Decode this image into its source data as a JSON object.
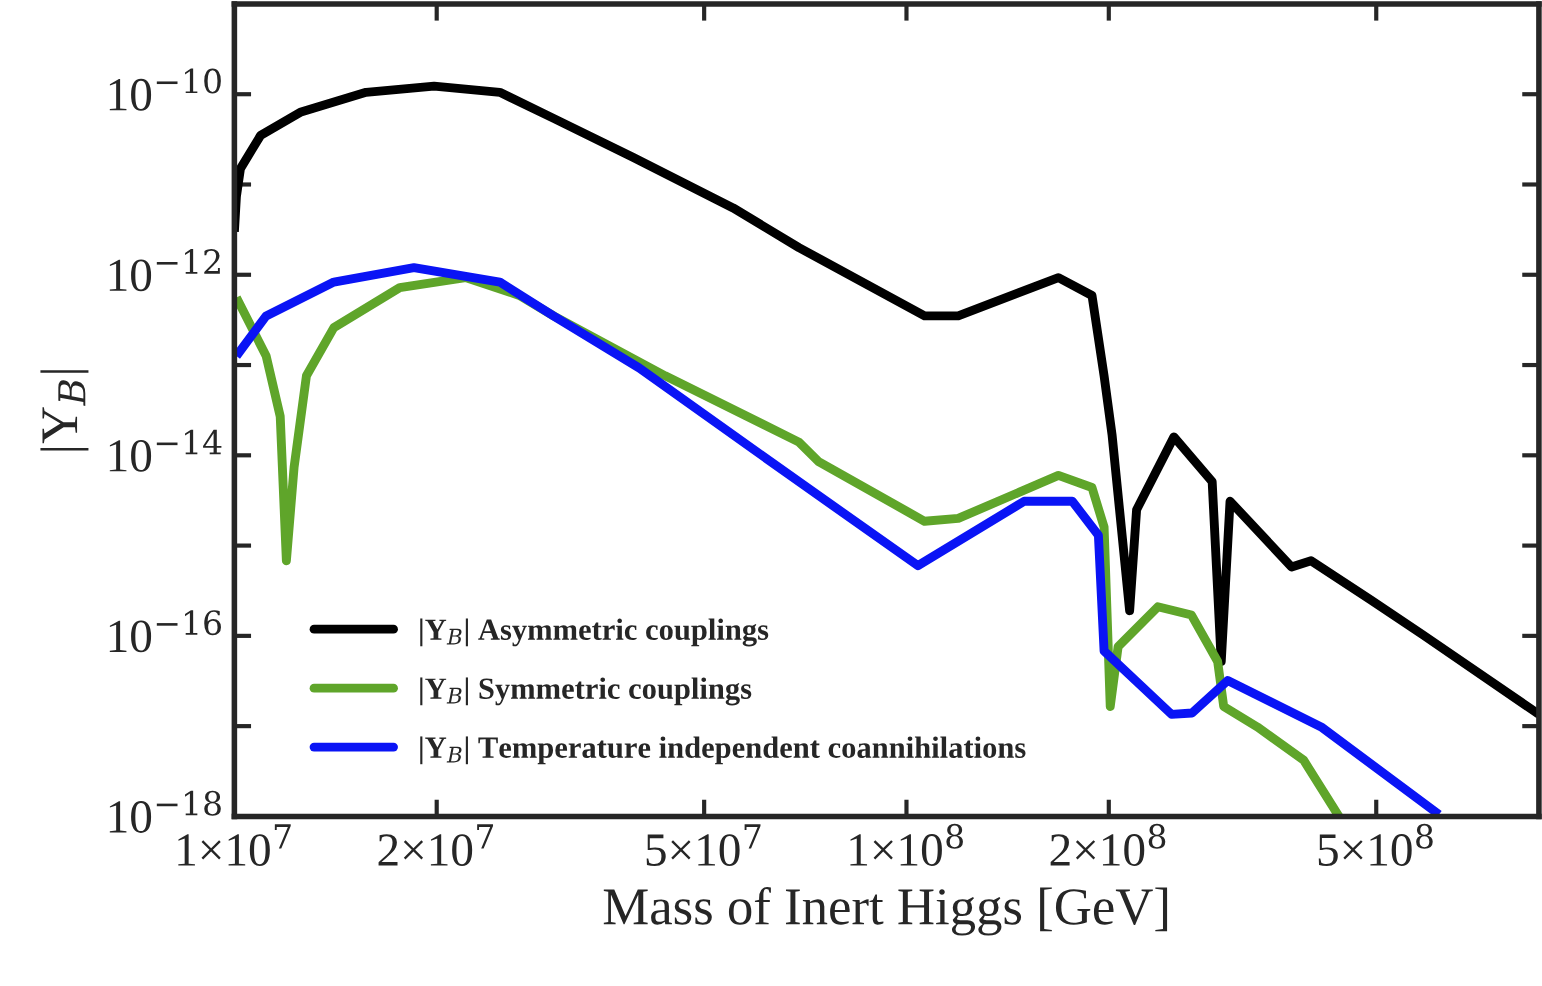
{
  "chart_data": {
    "type": "line",
    "xlabel": "Mass of Inert Higgs [GeV]",
    "ylabel": "|Y$_{B}$|",
    "log": "xy",
    "grid": false,
    "legend": "bottom left",
    "line_style": "solid",
    "marker": "none",
    "xlim": [
      10000000.0,
      873000000.0
    ],
    "ylim": [
      1e-18,
      1e-09
    ],
    "xticks": [
      {
        "value": 10000000.0,
        "label": "1×10$^{7}$"
      },
      {
        "value": 20000000.0,
        "label": "2×10$^{7}$"
      },
      {
        "value": 50000000.0,
        "label": "5×10$^{7}$"
      },
      {
        "value": 100000000.0,
        "label": "1×10$^{8}$"
      },
      {
        "value": 200000000.0,
        "label": "2×10$^{8}$"
      },
      {
        "value": 500000000.0,
        "label": "5×10$^{8}$"
      }
    ],
    "yticks": [
      {
        "value": 1e-18,
        "label": "10$^{−18}$"
      },
      {
        "value": 1e-17,
        "label": null
      },
      {
        "value": 1e-16,
        "label": "10$^{−16}$"
      },
      {
        "value": 1e-15,
        "label": null
      },
      {
        "value": 1e-14,
        "label": "10$^{−14}$"
      },
      {
        "value": 1e-13,
        "label": null
      },
      {
        "value": 1e-12,
        "label": "10$^{−12}$"
      },
      {
        "value": 1e-11,
        "label": null
      },
      {
        "value": 1e-10,
        "label": "10$^{−10}$"
      }
    ],
    "series": [
      {
        "name": "|Y$_{B}$| Asymmetric couplings",
        "color": "#000000",
        "x": [
          10000000.0,
          10070000.0,
          10210000.0,
          10940000.0,
          12530000.0,
          15700000.0,
          19820000.0,
          24830000.0,
          29850000.0,
          39170000.0,
          55210000.0,
          69180000.0,
          106400000.0,
          119400000.0,
          168300000.0,
          188800000.0,
          196800000.0,
          202300000.0,
          214800000.0,
          220000000.0,
          250000000.0,
          285000000.0,
          294000000.0,
          303000000.0,
          374100000.0,
          399900000.0,
          490900000.0,
          587500000.0,
          873000000.0
        ],
        "values": [
          3e-12,
          7.4e-12,
          1.5e-11,
          3.5e-11,
          6.3e-11,
          1.05e-10,
          1.23e-10,
          1.05e-10,
          5.4e-11,
          2e-11,
          5.5e-12,
          2e-12,
          3.5e-13,
          3.5e-13,
          9.3e-13,
          5.9e-13,
          7.6e-14,
          1.66e-14,
          1.9e-16,
          2.5e-15,
          1.6e-14,
          5.1e-15,
          5.2e-17,
          3.1e-15,
          5.8e-16,
          6.8e-16,
          2.5e-16,
          1.02e-16,
          1.35e-17
        ]
      },
      {
        "name": "|Y$_{B}$| Symmetric couplings",
        "color": "#5fa52a",
        "x": [
          10070000.0,
          11150000.0,
          11700000.0,
          11950000.0,
          12270000.0,
          12800000.0,
          14060000.0,
          17620000.0,
          22080000.0,
          26550000.0,
          29850000.0,
          43750000.0,
          69180000.0,
          74000000.0,
          106400000.0,
          119400000.0,
          168300000.0,
          188800000.0,
          196800000.0,
          201000000.0,
          206500000.0,
          236600000.0,
          265500000.0,
          290400000.0,
          296500000.0,
          332700000.0,
          389900000.0,
          440000000.0
        ],
        "values": [
          5.6e-13,
          1.26e-13,
          2.7e-14,
          6.8e-16,
          7.4e-15,
          7.6e-14,
          2.6e-13,
          7.2e-13,
          9.3e-13,
          5.9e-13,
          3.5e-13,
          7.6e-14,
          1.4e-14,
          8.5e-15,
          1.86e-15,
          2e-15,
          6e-15,
          4.4e-15,
          1.6e-15,
          1.65e-17,
          7.6e-17,
          2.1e-16,
          1.7e-16,
          5.2e-17,
          1.65e-17,
          9.8e-18,
          4.2e-18,
          1e-18
        ]
      },
      {
        "name": "|Y$_{B}$| Temperature independent coannihilations",
        "color": "#0a14f5",
        "x": [
          10070000.0,
          11150000.0,
          14060000.0,
          18500000.0,
          24830000.0,
          29850000.0,
          40000000.0,
          69180000.0,
          104000000.0,
          149700000.0,
          176500000.0,
          193000000.0,
          196800000.0,
          248000000.0,
          266000000.0,
          300600000.0,
          414000000.0,
          620000000.0
        ],
        "values": [
          1.26e-13,
          3.5e-13,
          8.3e-13,
          1.2e-12,
          8.3e-13,
          3.5e-13,
          9.3e-14,
          5.1e-15,
          6e-16,
          3.1e-15,
          3.1e-15,
          1.3e-15,
          6.8e-17,
          1.35e-17,
          1.4e-17,
          3.2e-17,
          9.8e-18,
          1.05e-18
        ]
      }
    ]
  }
}
